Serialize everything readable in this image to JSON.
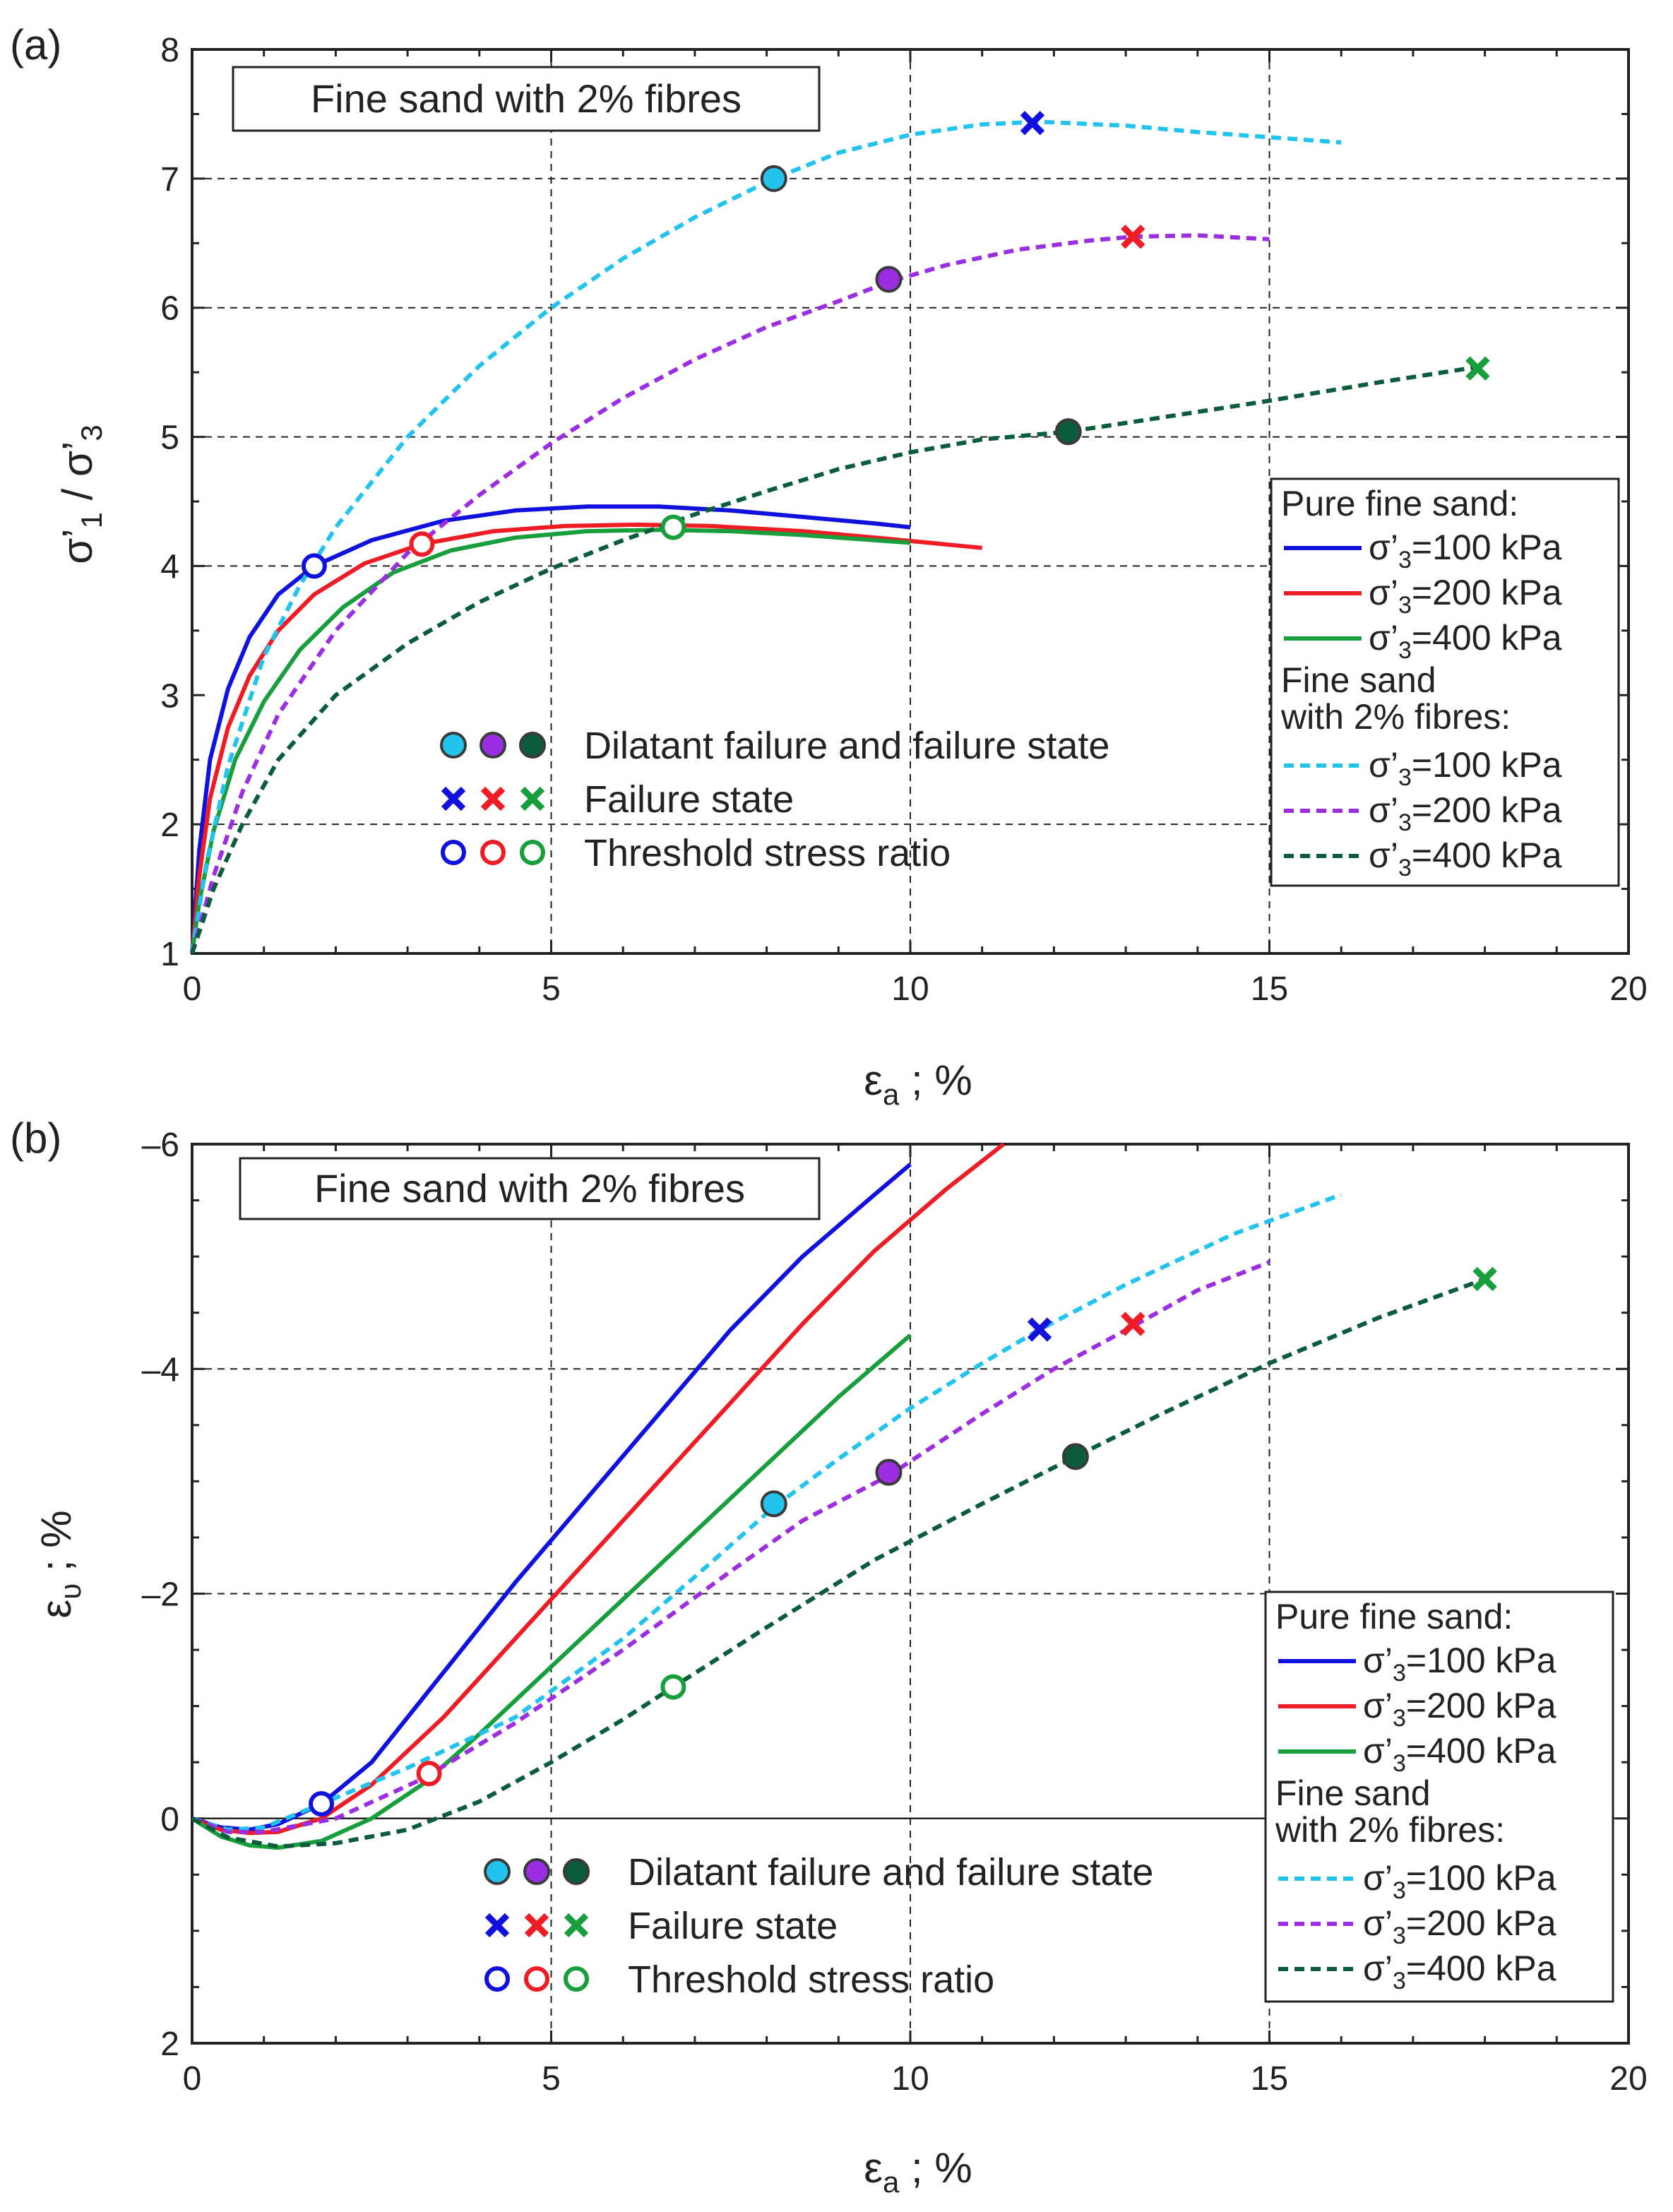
{
  "colors": {
    "pure_100": "#1111dd",
    "pure_200": "#ee1c24",
    "pure_400": "#189e3c",
    "fib_100": "#22c4ee",
    "fib_200": "#9a2ee0",
    "fib_400": "#0b5c3a"
  },
  "chart_data": [
    {
      "type": "line",
      "panel": "(a)",
      "title": "Fine sand with 2% fibres",
      "xlabel": "εa ; %",
      "ylabel": "σ'1 / σ'3",
      "xlim": [
        0,
        20
      ],
      "ylim": [
        1,
        8
      ],
      "xticks": [
        "0",
        "5",
        "10",
        "15",
        "20"
      ],
      "yticks": [
        "1",
        "2",
        "3",
        "4",
        "5",
        "6",
        "7",
        "8"
      ],
      "grid_x": [
        5,
        10,
        15
      ],
      "grid_y": [
        2,
        4,
        5,
        6,
        7
      ],
      "series": [
        {
          "name": "Pure fine sand σ'3=100 kPa",
          "color_key": "pure_100",
          "style": "solid",
          "x": [
            0,
            0.1,
            0.25,
            0.5,
            0.8,
            1.2,
            1.7,
            2.5,
            3.5,
            4.5,
            5.5,
            6.5,
            7.5,
            8.5,
            9.5,
            10.0
          ],
          "y": [
            1.0,
            1.8,
            2.5,
            3.05,
            3.45,
            3.78,
            4.0,
            4.2,
            4.35,
            4.43,
            4.46,
            4.46,
            4.43,
            4.38,
            4.33,
            4.3
          ]
        },
        {
          "name": "Pure fine sand σ'3=200 kPa",
          "color_key": "pure_200",
          "style": "solid",
          "x": [
            0,
            0.1,
            0.25,
            0.5,
            0.8,
            1.2,
            1.7,
            2.4,
            3.2,
            4.2,
            5.2,
            6.2,
            7.2,
            8.5,
            9.7,
            11.0
          ],
          "y": [
            1.0,
            1.6,
            2.2,
            2.75,
            3.15,
            3.5,
            3.78,
            4.02,
            4.17,
            4.27,
            4.31,
            4.32,
            4.31,
            4.27,
            4.21,
            4.14
          ]
        },
        {
          "name": "Pure fine sand σ'3=400 kPa",
          "color_key": "pure_400",
          "style": "solid",
          "x": [
            0,
            0.1,
            0.3,
            0.6,
            1.0,
            1.5,
            2.1,
            2.8,
            3.6,
            4.5,
            5.5,
            6.5,
            7.5,
            8.5,
            10.0
          ],
          "y": [
            1.0,
            1.4,
            1.95,
            2.5,
            2.95,
            3.35,
            3.68,
            3.95,
            4.12,
            4.22,
            4.27,
            4.28,
            4.27,
            4.24,
            4.18
          ]
        },
        {
          "name": "Fine sand with 2% fibres σ'3=100 kPa",
          "color_key": "fib_100",
          "style": "dashed",
          "x": [
            0,
            0.2,
            0.5,
            1.0,
            1.5,
            2.0,
            3.0,
            4.0,
            5.0,
            6.0,
            7.0,
            8.1,
            9.0,
            10.0,
            11.0,
            11.8,
            13.0,
            14.0,
            15.0,
            16.0
          ],
          "y": [
            1.0,
            1.7,
            2.45,
            3.3,
            3.85,
            4.3,
            5.0,
            5.55,
            6.0,
            6.38,
            6.7,
            7.0,
            7.2,
            7.34,
            7.42,
            7.44,
            7.41,
            7.36,
            7.32,
            7.28
          ]
        },
        {
          "name": "Fine sand with 2% fibres σ'3=200 kPa",
          "color_key": "fib_200",
          "style": "dashed",
          "x": [
            0,
            0.3,
            0.7,
            1.2,
            2.0,
            3.0,
            4.0,
            5.0,
            6.0,
            7.0,
            8.0,
            9.0,
            9.7,
            10.5,
            11.5,
            12.5,
            13.1,
            14.0,
            15.0
          ],
          "y": [
            1.0,
            1.6,
            2.25,
            2.85,
            3.5,
            4.1,
            4.55,
            4.95,
            5.3,
            5.6,
            5.85,
            6.05,
            6.2,
            6.33,
            6.45,
            6.52,
            6.55,
            6.56,
            6.53
          ]
        },
        {
          "name": "Fine sand with 2% fibres σ'3=400 kPa",
          "color_key": "fib_400",
          "style": "dashed",
          "x": [
            0,
            0.3,
            0.7,
            1.2,
            2.0,
            3.0,
            4.0,
            5.0,
            6.0,
            7.0,
            8.0,
            9.0,
            10.0,
            11.0,
            12.2,
            13.5,
            15.0,
            16.5,
            18.0
          ],
          "y": [
            1.0,
            1.5,
            2.0,
            2.5,
            3.0,
            3.4,
            3.72,
            3.98,
            4.2,
            4.4,
            4.58,
            4.75,
            4.88,
            4.98,
            5.04,
            5.15,
            5.28,
            5.42,
            5.55
          ]
        }
      ],
      "markers": [
        {
          "kind": "threshold",
          "color_key": "pure_100",
          "x": 1.7,
          "y": 4.0
        },
        {
          "kind": "threshold",
          "color_key": "pure_200",
          "x": 3.2,
          "y": 4.17
        },
        {
          "kind": "threshold",
          "color_key": "pure_400",
          "x": 6.7,
          "y": 4.3
        },
        {
          "kind": "dilatant",
          "color_key": "fib_100",
          "x": 8.1,
          "y": 7.0
        },
        {
          "kind": "dilatant",
          "color_key": "fib_200",
          "x": 9.7,
          "y": 6.22
        },
        {
          "kind": "dilatant",
          "color_key": "fib_400",
          "x": 12.2,
          "y": 5.04
        },
        {
          "kind": "failure",
          "color_key": "pure_100",
          "x": 11.7,
          "y": 7.43
        },
        {
          "kind": "failure",
          "color_key": "pure_200",
          "x": 13.1,
          "y": 6.55
        },
        {
          "kind": "failure",
          "color_key": "pure_400",
          "x": 17.9,
          "y": 5.53
        }
      ],
      "legend": {
        "placement": "right",
        "pure_heading": "Pure fine sand:",
        "fib_heading_1": "Fine sand",
        "fib_heading_2": "with 2% fibres:",
        "entries": [
          "σ'3=100 kPa",
          "σ'3=200 kPa",
          "σ'3=400 kPa",
          "σ'3=100 kPa",
          "σ'3=200 kPa",
          "σ'3=400 kPa"
        ]
      },
      "annotations": [
        "Dilatant failure and failure state",
        "Failure state",
        "Threshold stress ratio"
      ]
    },
    {
      "type": "line",
      "panel": "(b)",
      "title": "Fine sand with 2% fibres",
      "xlabel": "εa ; %",
      "ylabel": "ευ ; %",
      "xlim": [
        0,
        20
      ],
      "ylim": [
        2,
        -6
      ],
      "xticks": [
        "0",
        "5",
        "10",
        "15",
        "20"
      ],
      "yticks": [
        "–6",
        "–4",
        "–2",
        "0",
        "2"
      ],
      "grid_x": [
        5,
        10,
        15
      ],
      "grid_y": [
        -2,
        -4
      ],
      "zero_line": 0,
      "series": [
        {
          "name": "Pure fine sand σ'3=100 kPa",
          "color_key": "pure_100",
          "style": "solid",
          "x": [
            0,
            0.4,
            0.8,
            1.2,
            1.8,
            2.5,
            3.5,
            4.5,
            5.5,
            6.5,
            7.5,
            8.5,
            9.5,
            10.0
          ],
          "y": [
            0,
            0.08,
            0.1,
            0.05,
            -0.13,
            -0.5,
            -1.3,
            -2.1,
            -2.85,
            -3.6,
            -4.35,
            -5.0,
            -5.55,
            -5.82
          ]
        },
        {
          "name": "Pure fine sand σ'3=200 kPa",
          "color_key": "pure_200",
          "style": "solid",
          "x": [
            0,
            0.4,
            0.8,
            1.2,
            1.8,
            2.5,
            3.5,
            4.5,
            5.5,
            6.5,
            7.5,
            8.5,
            9.5,
            10.5,
            11.3
          ],
          "y": [
            0,
            0.1,
            0.13,
            0.12,
            0.0,
            -0.3,
            -0.9,
            -1.6,
            -2.3,
            -3.0,
            -3.7,
            -4.4,
            -5.05,
            -5.6,
            -6.0
          ]
        },
        {
          "name": "Pure fine sand σ'3=400 kPa",
          "color_key": "pure_400",
          "style": "solid",
          "x": [
            0,
            0.4,
            0.8,
            1.2,
            1.8,
            2.5,
            3.2,
            4.0,
            5.0,
            6.0,
            7.0,
            8.0,
            9.0,
            10.0
          ],
          "y": [
            0,
            0.16,
            0.24,
            0.26,
            0.2,
            0.0,
            -0.3,
            -0.75,
            -1.35,
            -1.95,
            -2.55,
            -3.15,
            -3.75,
            -4.3
          ]
        },
        {
          "name": "Fine sand with 2% fibres σ'3=100 kPa",
          "color_key": "fib_100",
          "style": "dashed",
          "x": [
            0,
            0.5,
            1.0,
            1.8,
            3.0,
            4.5,
            6.0,
            7.0,
            8.1,
            9.0,
            10.0,
            11.0,
            11.8,
            13.0,
            14.5,
            16.0
          ],
          "y": [
            0,
            0.1,
            0.08,
            -0.13,
            -0.45,
            -0.9,
            -1.6,
            -2.15,
            -2.77,
            -3.2,
            -3.65,
            -4.05,
            -4.35,
            -4.75,
            -5.2,
            -5.55
          ]
        },
        {
          "name": "Fine sand with 2% fibres σ'3=200 kPa",
          "color_key": "fib_200",
          "style": "dashed",
          "x": [
            0,
            0.5,
            1.0,
            2.0,
            3.2,
            4.5,
            6.0,
            7.5,
            8.5,
            9.7,
            11.0,
            12.0,
            13.1,
            14.0,
            15.0
          ],
          "y": [
            0,
            0.12,
            0.12,
            0.0,
            -0.35,
            -0.85,
            -1.5,
            -2.2,
            -2.65,
            -3.05,
            -3.6,
            -4.0,
            -4.38,
            -4.7,
            -4.95
          ]
        },
        {
          "name": "Fine sand with 2% fibres σ'3=400 kPa",
          "color_key": "fib_400",
          "style": "dashed",
          "x": [
            0,
            0.5,
            1.2,
            2.0,
            3.0,
            4.0,
            5.0,
            6.0,
            6.7,
            8.0,
            9.5,
            11.0,
            12.3,
            13.5,
            15.0,
            16.5,
            18.0
          ],
          "y": [
            0,
            0.17,
            0.25,
            0.22,
            0.1,
            -0.15,
            -0.5,
            -0.88,
            -1.17,
            -1.7,
            -2.3,
            -2.8,
            -3.22,
            -3.6,
            -4.05,
            -4.45,
            -4.8
          ]
        }
      ],
      "markers": [
        {
          "kind": "threshold",
          "color_key": "pure_100",
          "x": 1.8,
          "y": -0.13
        },
        {
          "kind": "threshold",
          "color_key": "pure_200",
          "x": 3.3,
          "y": -0.4
        },
        {
          "kind": "threshold",
          "color_key": "pure_400",
          "x": 6.7,
          "y": -1.17
        },
        {
          "kind": "dilatant",
          "color_key": "fib_100",
          "x": 8.1,
          "y": -2.8
        },
        {
          "kind": "dilatant",
          "color_key": "fib_200",
          "x": 9.7,
          "y": -3.08
        },
        {
          "kind": "dilatant",
          "color_key": "fib_400",
          "x": 12.3,
          "y": -3.22
        },
        {
          "kind": "failure",
          "color_key": "pure_100",
          "x": 11.8,
          "y": -4.35
        },
        {
          "kind": "failure",
          "color_key": "pure_200",
          "x": 13.1,
          "y": -4.4
        },
        {
          "kind": "failure",
          "color_key": "pure_400",
          "x": 18.0,
          "y": -4.8
        }
      ],
      "legend": {
        "placement": "right",
        "pure_heading": "Pure fine sand:",
        "fib_heading_1": "Fine sand",
        "fib_heading_2": "with 2% fibres:",
        "entries": [
          "σ'3=100 kPa",
          "σ'3=200 kPa",
          "σ'3=400 kPa",
          "σ'3=100 kPa",
          "σ'3=200 kPa",
          "σ'3=400 kPa"
        ]
      },
      "annotations": [
        "Dilatant failure and failure state",
        "Failure state",
        "Threshold stress ratio"
      ]
    }
  ]
}
